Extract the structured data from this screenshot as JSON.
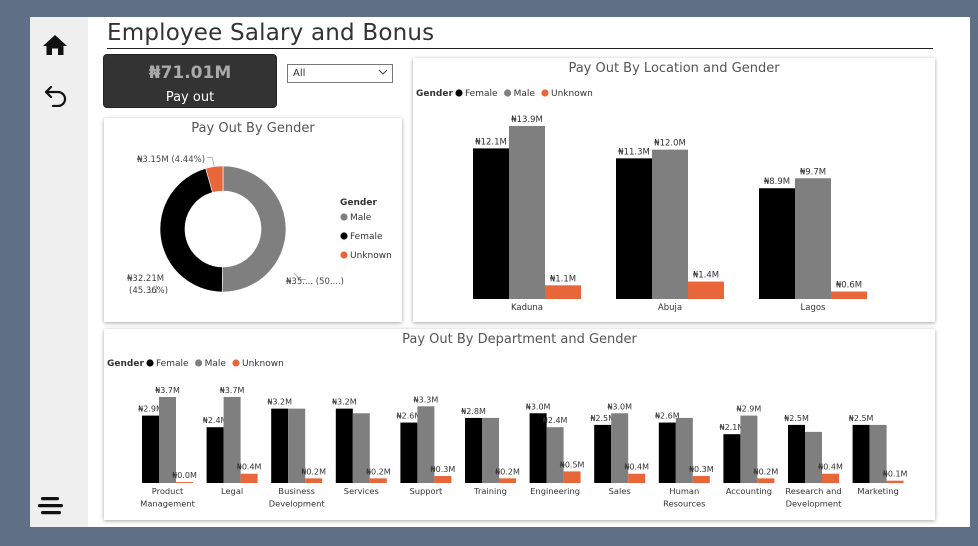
{
  "page": {
    "title": "Employee Salary and Bonus"
  },
  "nav": {
    "icons": [
      "home-icon",
      "back-arrow-icon",
      "menu-icon"
    ]
  },
  "kpi": {
    "value": "₦71.01M",
    "label": "Pay out"
  },
  "slicer": {
    "value": "All"
  },
  "colors": {
    "female": "#000000",
    "male": "#7f7f7f",
    "unknown": "#e8673a"
  },
  "chart_data": [
    {
      "id": "gender",
      "type": "pie",
      "title": "Pay Out By Gender",
      "legend_title": "Gender",
      "legend_position": "right",
      "legend": [
        "Male",
        "Female",
        "Unknown"
      ],
      "slices": [
        {
          "name": "Male",
          "value": 35.65,
          "label": "₦35.... (50....)"
        },
        {
          "name": "Female",
          "value": 32.21,
          "label": "₦32.21M",
          "label2": "(45.36%)"
        },
        {
          "name": "Unknown",
          "value": 3.15,
          "label": "₦3.15M (4.44%)"
        }
      ]
    },
    {
      "id": "location",
      "type": "bar",
      "title": "Pay Out By Location and Gender",
      "legend_title": "Gender",
      "legend_position": "top-left",
      "categories": [
        "Kaduna",
        "Abuja",
        "Lagos"
      ],
      "series": [
        {
          "name": "Female",
          "values": [
            12.1,
            11.3,
            8.9
          ],
          "labels": [
            "₦12.1M",
            "₦11.3M",
            "₦8.9M"
          ]
        },
        {
          "name": "Male",
          "values": [
            13.9,
            12.0,
            9.7
          ],
          "labels": [
            "₦13.9M",
            "₦12.0M",
            "₦9.7M"
          ]
        },
        {
          "name": "Unknown",
          "values": [
            1.1,
            1.4,
            0.6
          ],
          "labels": [
            "₦1.1M",
            "₦1.4M",
            "₦0.6M"
          ]
        }
      ]
    },
    {
      "id": "department",
      "type": "bar",
      "title": "Pay Out By Department and Gender",
      "legend_title": "Gender",
      "legend_position": "top-left",
      "categories": [
        "Product Management",
        "Legal",
        "Business Development",
        "Services",
        "Support",
        "Training",
        "Engineering",
        "Sales",
        "Human Resources",
        "Accounting",
        "Research and Development",
        "Marketing"
      ],
      "category_lines": [
        [
          "Product",
          "Management"
        ],
        [
          "Legal"
        ],
        [
          "Business",
          "Development"
        ],
        [
          "Services"
        ],
        [
          "Support"
        ],
        [
          "Training"
        ],
        [
          "Engineering"
        ],
        [
          "Sales"
        ],
        [
          "Human",
          "Resources"
        ],
        [
          "Accounting"
        ],
        [
          "Research and",
          "Development"
        ],
        [
          "Marketing"
        ]
      ],
      "series": [
        {
          "name": "Female",
          "values": [
            2.9,
            2.4,
            3.2,
            3.2,
            2.6,
            2.8,
            3.0,
            2.5,
            2.6,
            2.1,
            2.5,
            2.5
          ],
          "labels": [
            "₦2.9M",
            "₦2.4M",
            "₦3.2M",
            "₦3.2M",
            "₦2.6M",
            "₦2.8M",
            "₦3.0M",
            "₦2.5M",
            "₦2.6M",
            "₦2.1M",
            "₦2.5M",
            "₦2.5M"
          ]
        },
        {
          "name": "Male",
          "values": [
            3.7,
            3.7,
            3.2,
            3.0,
            3.3,
            2.8,
            2.4,
            3.0,
            2.8,
            2.9,
            2.2,
            2.5
          ],
          "labels": [
            "₦3.7M",
            "₦3.7M",
            "",
            "",
            "₦3.3M",
            "",
            "₦2.4M",
            "₦3.0M",
            "",
            "₦2.9M",
            "",
            ""
          ]
        },
        {
          "name": "Unknown",
          "values": [
            0.04,
            0.4,
            0.2,
            0.2,
            0.3,
            0.2,
            0.5,
            0.4,
            0.3,
            0.2,
            0.4,
            0.1
          ],
          "labels": [
            "₦0.0M",
            "₦0.4M",
            "₦0.2M",
            "₦0.2M",
            "₦0.3M",
            "₦0.2M",
            "₦0.5M",
            "₦0.4M",
            "₦0.3M",
            "₦0.2M",
            "₦0.4M",
            "₦0.1M"
          ]
        }
      ]
    }
  ]
}
